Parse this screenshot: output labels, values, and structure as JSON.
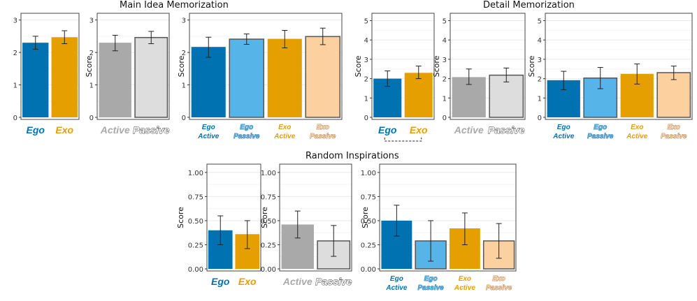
{
  "colors": {
    "ego": "#0072B2",
    "exo": "#E69F00",
    "active": "#A9A9A9",
    "passive": "#DDDDDD",
    "ego_passive": "#56B4E9",
    "exo_passive": "#FDD09F",
    "outline": "#555555",
    "grid": "#EBEBEB",
    "panel_border": "#444444"
  },
  "groups": [
    {
      "title": "Main Idea Memorization"
    },
    {
      "title": "Detail Memorization"
    },
    {
      "title": "Random Inspirations"
    }
  ],
  "chart_data": [
    {
      "type": "bar",
      "group": "Main Idea Memorization",
      "title": "",
      "ylabel": "",
      "ylim": [
        0,
        3.1
      ],
      "yticks": [
        "0",
        "1",
        "2",
        "3"
      ],
      "ytick_values": [
        0,
        1,
        2,
        3
      ],
      "categories": [
        [
          "Ego"
        ],
        [
          "Exo"
        ]
      ],
      "cat_styles": [
        "ego",
        "exo"
      ],
      "values": [
        2.3,
        2.47
      ],
      "err_low": [
        2.1,
        2.27
      ],
      "err_high": [
        2.5,
        2.67
      ],
      "fills": [
        "ego",
        "exo"
      ],
      "outlined": [
        false,
        false
      ]
    },
    {
      "type": "bar",
      "group": "Main Idea Memorization",
      "title": "",
      "ylabel": "Score",
      "ylim": [
        0,
        3.1
      ],
      "yticks": [
        "0",
        "1",
        "2",
        "3"
      ],
      "ytick_values": [
        0,
        1,
        2,
        3
      ],
      "categories": [
        [
          "Active"
        ],
        [
          "Passive"
        ]
      ],
      "cat_styles": [
        "active",
        "passive"
      ],
      "values": [
        2.3,
        2.46
      ],
      "err_low": [
        2.05,
        2.27
      ],
      "err_high": [
        2.53,
        2.65
      ],
      "fills": [
        "active",
        "passive"
      ],
      "outlined": [
        false,
        true
      ]
    },
    {
      "type": "bar",
      "group": "Main Idea Memorization",
      "title": "",
      "ylabel": "Score",
      "ylim": [
        0,
        3.1
      ],
      "yticks": [
        "0",
        "1",
        "2",
        "3"
      ],
      "ytick_values": [
        0,
        1,
        2,
        3
      ],
      "categories": [
        [
          "Ego",
          "Active"
        ],
        [
          "Ego",
          "Passive"
        ],
        [
          "Exo",
          "Active"
        ],
        [
          "Exo",
          "Passive"
        ]
      ],
      "cat_styles": [
        "ego",
        "ego_passive",
        "exo",
        "exo_passive"
      ],
      "values": [
        2.17,
        2.41,
        2.42,
        2.49
      ],
      "err_low": [
        1.85,
        2.25,
        2.14,
        2.24
      ],
      "err_high": [
        2.47,
        2.57,
        2.68,
        2.75
      ],
      "fills": [
        "ego",
        "ego_passive",
        "exo",
        "exo_passive"
      ],
      "outlined": [
        false,
        true,
        false,
        true
      ]
    },
    {
      "type": "bar",
      "group": "Detail Memorization",
      "title": "",
      "ylabel": "Score",
      "ylim": [
        0,
        5.2
      ],
      "yticks": [
        "0",
        "1",
        "2",
        "3",
        "4",
        "5"
      ],
      "ytick_values": [
        0,
        1,
        2,
        3,
        4,
        5
      ],
      "categories": [
        [
          "Ego"
        ],
        [
          "Exo"
        ]
      ],
      "cat_styles": [
        "ego",
        "exo"
      ],
      "values": [
        2.0,
        2.3
      ],
      "err_low": [
        1.6,
        2.0
      ],
      "err_high": [
        2.4,
        2.65
      ],
      "fills": [
        "ego",
        "exo"
      ],
      "outlined": [
        false,
        false
      ],
      "bracket": true
    },
    {
      "type": "bar",
      "group": "Detail Memorization",
      "title": "",
      "ylabel": "Score",
      "ylim": [
        0,
        5.2
      ],
      "yticks": [
        "0",
        "1",
        "2",
        "3",
        "4",
        "5"
      ],
      "ytick_values": [
        0,
        1,
        2,
        3,
        4,
        5
      ],
      "categories": [
        [
          "Active"
        ],
        [
          "Passive"
        ]
      ],
      "cat_styles": [
        "active",
        "passive"
      ],
      "values": [
        2.08,
        2.18
      ],
      "err_low": [
        1.7,
        1.83
      ],
      "err_high": [
        2.5,
        2.55
      ],
      "fills": [
        "active",
        "passive"
      ],
      "outlined": [
        false,
        true
      ]
    },
    {
      "type": "bar",
      "group": "Detail Memorization",
      "title": "",
      "ylabel": "Score",
      "ylim": [
        0,
        5.2
      ],
      "yticks": [
        "0",
        "1",
        "2",
        "3",
        "4",
        "5"
      ],
      "ytick_values": [
        0,
        1,
        2,
        3,
        4,
        5
      ],
      "categories": [
        [
          "Ego",
          "Active"
        ],
        [
          "Ego",
          "Passive"
        ],
        [
          "Exo",
          "Active"
        ],
        [
          "Exo",
          "Passive"
        ]
      ],
      "cat_styles": [
        "ego",
        "ego_passive",
        "exo",
        "exo_passive"
      ],
      "values": [
        1.92,
        2.03,
        2.25,
        2.31
      ],
      "err_low": [
        1.43,
        1.48,
        1.72,
        1.95
      ],
      "err_high": [
        2.38,
        2.58,
        2.76,
        2.65
      ],
      "fills": [
        "ego",
        "ego_passive",
        "exo",
        "exo_passive"
      ],
      "outlined": [
        false,
        true,
        false,
        true
      ]
    },
    {
      "type": "bar",
      "group": "Random Inspirations",
      "title": "",
      "ylabel": "Score",
      "ylim": [
        0,
        1.05
      ],
      "yticks": [
        "0.00",
        "0.25",
        "0.50",
        "0.75",
        "1.00"
      ],
      "ytick_values": [
        0,
        0.25,
        0.5,
        0.75,
        1.0
      ],
      "categories": [
        [
          "Ego"
        ],
        [
          "Exo"
        ]
      ],
      "cat_styles": [
        "ego",
        "exo"
      ],
      "values": [
        0.4,
        0.36
      ],
      "err_low": [
        0.25,
        0.21
      ],
      "err_high": [
        0.55,
        0.5
      ],
      "fills": [
        "ego",
        "exo"
      ],
      "outlined": [
        false,
        false
      ]
    },
    {
      "type": "bar",
      "group": "Random Inspirations",
      "title": "",
      "ylabel": "Score",
      "ylim": [
        0,
        1.05
      ],
      "yticks": [
        "0.00",
        "0.25",
        "0.50",
        "0.75",
        "1.00"
      ],
      "ytick_values": [
        0,
        0.25,
        0.5,
        0.75,
        1.0
      ],
      "categories": [
        [
          "Active"
        ],
        [
          "Passive"
        ]
      ],
      "cat_styles": [
        "active",
        "passive"
      ],
      "values": [
        0.46,
        0.29
      ],
      "err_low": [
        0.32,
        0.13
      ],
      "err_high": [
        0.6,
        0.45
      ],
      "fills": [
        "active",
        "passive"
      ],
      "outlined": [
        false,
        true
      ]
    },
    {
      "type": "bar",
      "group": "Random Inspirations",
      "title": "",
      "ylabel": "Score",
      "ylim": [
        0,
        1.05
      ],
      "yticks": [
        "0.00",
        "0.25",
        "0.50",
        "0.75",
        "1.00"
      ],
      "ytick_values": [
        0,
        0.25,
        0.5,
        0.75,
        1.0
      ],
      "categories": [
        [
          "Ego",
          "Active"
        ],
        [
          "Ego",
          "Passive"
        ],
        [
          "Exo",
          "Active"
        ],
        [
          "Exo",
          "Passive"
        ]
      ],
      "cat_styles": [
        "ego",
        "ego_passive",
        "exo",
        "exo_passive"
      ],
      "values": [
        0.5,
        0.29,
        0.42,
        0.29
      ],
      "err_low": [
        0.34,
        0.08,
        0.25,
        0.11
      ],
      "err_high": [
        0.66,
        0.5,
        0.58,
        0.47
      ],
      "fills": [
        "ego",
        "ego_passive",
        "exo",
        "exo_passive"
      ],
      "outlined": [
        false,
        true,
        false,
        true
      ]
    }
  ]
}
